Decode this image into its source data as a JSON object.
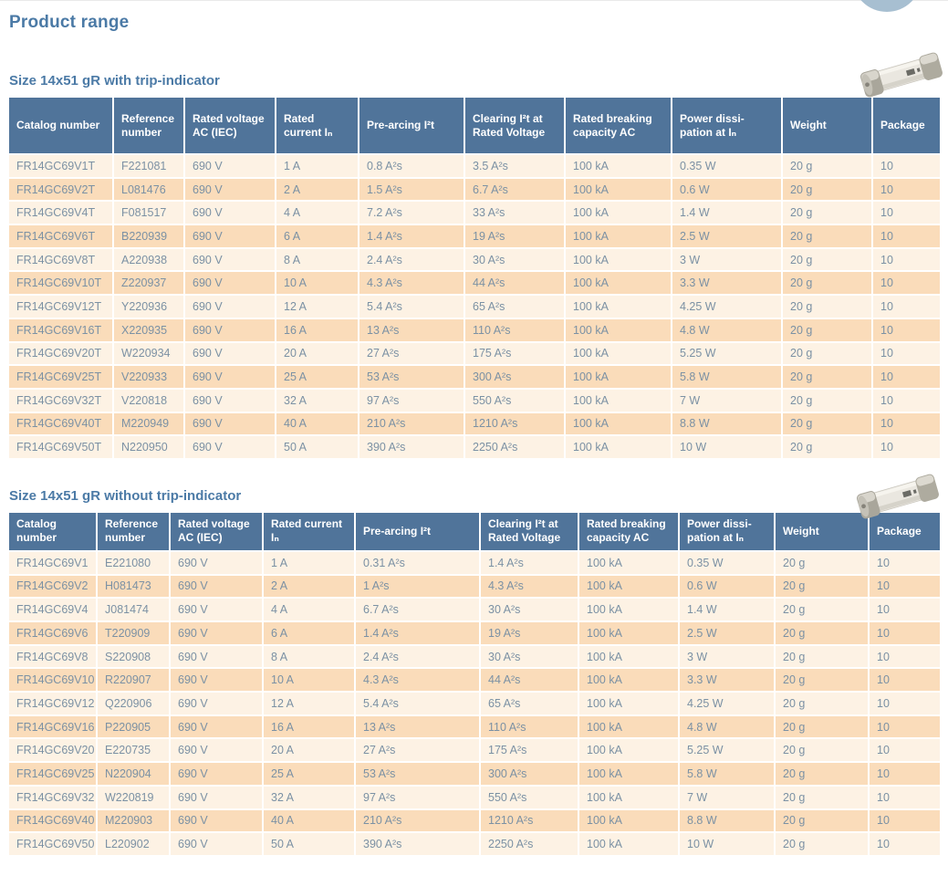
{
  "page": {
    "title": "Product range"
  },
  "colors": {
    "heading_blue": "#4b7aa6",
    "table_header_bg": "#50749a",
    "row_light": "#fdf2e4",
    "row_dark": "#fadcba",
    "cell_text": "#7b91a4",
    "circle_decoration": "#a7bfd1"
  },
  "icons": [
    {
      "name": "fuse-photo",
      "description": "cylindrical ceramic fuse with metal end caps"
    },
    {
      "name": "circle-decoration",
      "description": "partial light blue circle at top right"
    }
  ],
  "sections": [
    {
      "heading": "Size 14x51 gR with trip-indicator",
      "columns": [
        "Catalog number",
        "Reference number",
        "Rated voltage AC (IEC)",
        "Rated current Iₙ",
        "Pre-arcing I²t",
        "Clearing I²t at Rated Voltage",
        "Rated breaking capacity AC",
        "Power dissi-pation at Iₙ",
        "Weight",
        "Package"
      ],
      "rows": [
        [
          "FR14GC69V1T",
          "F221081",
          "690 V",
          "1 A",
          "0.8 A²s",
          "3.5 A²s",
          "100 kA",
          "0.35 W",
          "20 g",
          "10"
        ],
        [
          "FR14GC69V2T",
          "L081476",
          "690 V",
          "2 A",
          "1.5 A²s",
          "6.7 A²s",
          "100 kA",
          "0.6 W",
          "20 g",
          "10"
        ],
        [
          "FR14GC69V4T",
          "F081517",
          "690 V",
          "4 A",
          "7.2 A²s",
          "33 A²s",
          "100 kA",
          "1.4 W",
          "20 g",
          "10"
        ],
        [
          "FR14GC69V6T",
          "B220939",
          "690 V",
          "6 A",
          "1.4 A²s",
          "19 A²s",
          "100 kA",
          "2.5 W",
          "20 g",
          "10"
        ],
        [
          "FR14GC69V8T",
          "A220938",
          "690 V",
          "8 A",
          "2.4 A²s",
          "30 A²s",
          "100 kA",
          "3 W",
          "20 g",
          "10"
        ],
        [
          "FR14GC69V10T",
          "Z220937",
          "690 V",
          "10 A",
          "4.3 A²s",
          "44 A²s",
          "100 kA",
          "3.3 W",
          "20 g",
          "10"
        ],
        [
          "FR14GC69V12T",
          "Y220936",
          "690 V",
          "12 A",
          "5.4 A²s",
          "65 A²s",
          "100 kA",
          "4.25 W",
          "20 g",
          "10"
        ],
        [
          "FR14GC69V16T",
          "X220935",
          "690 V",
          "16 A",
          "13 A²s",
          "110 A²s",
          "100 kA",
          "4.8 W",
          "20 g",
          "10"
        ],
        [
          "FR14GC69V20T",
          "W220934",
          "690 V",
          "20 A",
          "27 A²s",
          "175 A²s",
          "100 kA",
          "5.25 W",
          "20 g",
          "10"
        ],
        [
          "FR14GC69V25T",
          "V220933",
          "690 V",
          "25 A",
          "53 A²s",
          "300 A²s",
          "100 kA",
          "5.8 W",
          "20 g",
          "10"
        ],
        [
          "FR14GC69V32T",
          "V220818",
          "690 V",
          "32 A",
          "97 A²s",
          "550 A²s",
          "100 kA",
          "7 W",
          "20 g",
          "10"
        ],
        [
          "FR14GC69V40T",
          "M220949",
          "690 V",
          "40 A",
          "210 A²s",
          "1210 A²s",
          "100 kA",
          "8.8 W",
          "20 g",
          "10"
        ],
        [
          "FR14GC69V50T",
          "N220950",
          "690 V",
          "50 A",
          "390 A²s",
          "2250 A²s",
          "100 kA",
          "10 W",
          "20 g",
          "10"
        ]
      ]
    },
    {
      "heading": "Size 14x51 gR without trip-indicator",
      "columns": [
        "Catalog number",
        "Reference number",
        "Rated voltage AC (IEC)",
        "Rated current Iₙ",
        "Pre-arcing I²t",
        "Clearing I²t at Rated Voltage",
        "Rated breaking capacity AC",
        "Power dissi-pation at Iₙ",
        "Weight",
        "Package"
      ],
      "rows": [
        [
          "FR14GC69V1",
          "E221080",
          "690 V",
          "1 A",
          "0.31 A²s",
          "1.4 A²s",
          "100 kA",
          "0.35 W",
          "20 g",
          "10"
        ],
        [
          "FR14GC69V2",
          "H081473",
          "690 V",
          "2 A",
          "1 A²s",
          "4.3 A²s",
          "100 kA",
          "0.6 W",
          "20 g",
          "10"
        ],
        [
          "FR14GC69V4",
          "J081474",
          "690 V",
          "4 A",
          "6.7 A²s",
          "30 A²s",
          "100 kA",
          "1.4 W",
          "20 g",
          "10"
        ],
        [
          "FR14GC69V6",
          "T220909",
          "690 V",
          "6 A",
          "1.4 A²s",
          "19 A²s",
          "100 kA",
          "2.5 W",
          "20 g",
          "10"
        ],
        [
          "FR14GC69V8",
          "S220908",
          "690 V",
          "8 A",
          "2.4 A²s",
          "30 A²s",
          "100 kA",
          "3 W",
          "20 g",
          "10"
        ],
        [
          "FR14GC69V10",
          "R220907",
          "690 V",
          "10 A",
          "4.3 A²s",
          "44 A²s",
          "100 kA",
          "3.3 W",
          "20 g",
          "10"
        ],
        [
          "FR14GC69V12",
          "Q220906",
          "690 V",
          "12 A",
          "5.4 A²s",
          "65 A²s",
          "100 kA",
          "4.25 W",
          "20 g",
          "10"
        ],
        [
          "FR14GC69V16",
          "P220905",
          "690 V",
          "16 A",
          "13 A²s",
          "110 A²s",
          "100 kA",
          "4.8 W",
          "20 g",
          "10"
        ],
        [
          "FR14GC69V20",
          "E220735",
          "690 V",
          "20 A",
          "27 A²s",
          "175 A²s",
          "100 kA",
          "5.25 W",
          "20 g",
          "10"
        ],
        [
          "FR14GC69V25",
          "N220904",
          "690 V",
          "25 A",
          "53 A²s",
          "300 A²s",
          "100 kA",
          "5.8 W",
          "20 g",
          "10"
        ],
        [
          "FR14GC69V32",
          "W220819",
          "690 V",
          "32 A",
          "97 A²s",
          "550 A²s",
          "100 kA",
          "7 W",
          "20 g",
          "10"
        ],
        [
          "FR14GC69V40",
          "M220903",
          "690 V",
          "40 A",
          "210 A²s",
          "1210 A²s",
          "100 kA",
          "8.8 W",
          "20 g",
          "10"
        ],
        [
          "FR14GC69V50",
          "L220902",
          "690 V",
          "50 A",
          "390 A²s",
          "2250 A²s",
          "100 kA",
          "10 W",
          "20 g",
          "10"
        ]
      ]
    }
  ]
}
